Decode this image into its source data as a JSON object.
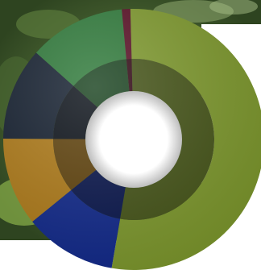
{
  "chart_data": {
    "type": "pie",
    "style": "donut",
    "title": "",
    "legend": "none",
    "data_labels": "none",
    "slices": [
      {
        "value": 51.0,
        "color": "#7f9a2e"
      },
      {
        "value": 11.0,
        "color": "#122a8c"
      },
      {
        "value": 10.5,
        "color": "#b07c1a"
      },
      {
        "value": 11.0,
        "color": "#152030"
      },
      {
        "value": 11.5,
        "color": "#2f7a3a"
      },
      {
        "value": 1.0,
        "color": "#5a1026"
      }
    ],
    "background": {
      "photo_color": "#3f5a2a",
      "canvas_color": "#ffffff"
    }
  }
}
